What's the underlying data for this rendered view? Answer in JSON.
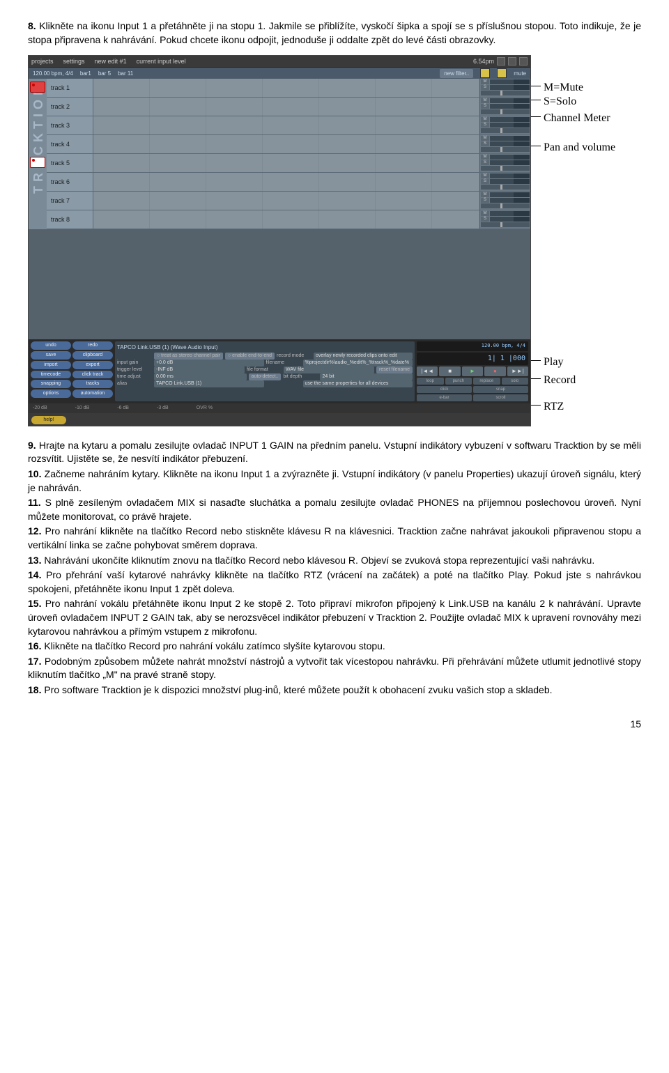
{
  "intro": {
    "n": "8.",
    "text": "Klikněte na ikonu Input 1 a přetáhněte ji na stopu 1. Jakmile se přiblížíte, vyskočí šipka a spojí se s příslušnou stopou. Toto indikuje, že je stopa připravena k nahrávání. Pokud chcete ikonu odpojit, jednoduše ji oddalte zpět do levé části obrazovky."
  },
  "screenshot": {
    "menubar": {
      "projects": "projects",
      "settings": "settings",
      "edit": "new edit #1",
      "level": "current input level",
      "time": "6.54pm"
    },
    "toolbar2": {
      "tempo": "120.00 bpm, 4/4",
      "bar1": "bar1",
      "bar5": "bar 5",
      "bar11": "bar 11",
      "newfilter": "new filter..",
      "mute": "mute"
    },
    "tracks": [
      {
        "label": "track 1",
        "chip": "red"
      },
      {
        "label": "track 2"
      },
      {
        "label": "track 3"
      },
      {
        "label": "track 4"
      },
      {
        "label": "track 5",
        "chip": "white"
      },
      {
        "label": "track 6"
      },
      {
        "label": "track 7"
      },
      {
        "label": "track 8"
      }
    ],
    "sidebtns": [
      [
        "undo",
        "redo"
      ],
      [
        "save",
        "clipboard"
      ],
      [
        "import",
        "export"
      ],
      [
        "timecode",
        "click track"
      ],
      [
        "snapping",
        "tracks"
      ],
      [
        "options",
        "automation"
      ]
    ],
    "help": "help!",
    "props": {
      "title": "TAPCO Link.USB (1) (Wave Audio Input)",
      "rows": [
        {
          "l": "",
          "f1": "treat as stereo channel pair",
          "f2": "enable end-to-end",
          "l2": "record mode",
          "v2": "overlay newly recorded clips onto edit"
        },
        {
          "l": "input gain",
          "v": "+0.0 dB",
          "l2": "filename",
          "v2": "%projectdir%\\audio_%edit%_%track%_%date%"
        },
        {
          "l": "trigger level",
          "v": "-INF dB",
          "l2": "file format",
          "v2": "WAV file",
          "extra": "reset filename"
        },
        {
          "l": "time adjust",
          "v": "0.00 ms",
          "mid": "auto-detect..",
          "l2": "bit depth",
          "v2": "24 bit"
        },
        {
          "l": "alias",
          "v": "TAPCO Link.USB (1)",
          "l2": "",
          "v2": "use the same properties for all devices"
        }
      ]
    },
    "transport": {
      "lcd_top": "120.00 bpm, 4/4",
      "lcd": "1| 1 |000",
      "marks": [
        "|◄◄",
        "■",
        "►",
        "●",
        "►►|"
      ],
      "row1": [
        "loop",
        "punch",
        "replace",
        "solo"
      ],
      "row2": [
        "click",
        "snap"
      ],
      "row3": [
        "e-bar",
        "scroll"
      ]
    },
    "ruler": [
      "-20 dB",
      "-10 dB",
      "-6 dB",
      "-3 dB",
      "OVR %"
    ]
  },
  "annotations": {
    "mute": "M=Mute",
    "solo": "S=Solo",
    "meter": "Channel Meter",
    "pan": "Pan and volume",
    "play": "Play",
    "record": "Record",
    "rtz": "RTZ"
  },
  "steps": [
    {
      "n": "9.",
      "text": "Hrajte na kytaru a pomalu zesilujte ovladač INPUT 1 GAIN na předním panelu. Vstupní indikátory vybuzení v softwaru Tracktion by se měli rozsvítit. Ujistěte se, že nesvítí indikátor přebuzení."
    },
    {
      "n": "10.",
      "text": "Začneme nahráním kytary. Klikněte na ikonu Input 1 a zvýrazněte ji. Vstupní indikátory (v panelu Properties) ukazují úroveň signálu, který je nahráván."
    },
    {
      "n": "11.",
      "text": "S plně zesíleným ovladačem MIX si nasaďte sluchátka a pomalu zesilujte ovladač PHONES na příjemnou poslechovou úroveň. Nyní můžete monitorovat, co právě hrajete."
    },
    {
      "n": "12.",
      "text": "Pro nahrání klikněte na tlačítko Record nebo stiskněte klávesu R na klávesnici. Tracktion začne nahrávat jakoukoli připravenou stopu a vertikální linka se začne pohybovat směrem doprava."
    },
    {
      "n": "13.",
      "text": "Nahrávání ukončíte kliknutím znovu na tlačítko Record nebo klávesou R. Objeví se zvuková stopa reprezentující vaši nahrávku."
    },
    {
      "n": "14.",
      "text": "Pro přehrání vaší kytarové nahrávky klikněte na tlačítko RTZ (vrácení na začátek) a poté na tlačítko Play. Pokud jste s nahrávkou spokojeni, přetáhněte ikonu Input 1 zpět doleva."
    },
    {
      "n": "15.",
      "text": "Pro nahrání vokálu přetáhněte ikonu Input 2 ke stopě 2. Toto připraví mikrofon připojený k Link.USB na kanálu 2 k nahrávání. Upravte úroveň ovladačem INPUT 2 GAIN tak, aby se nerozsvěcel indikátor přebuzení v Tracktion 2. Použijte ovladač MIX k upravení rovnováhy mezi kytarovou nahrávkou a přímým vstupem z mikrofonu."
    },
    {
      "n": "16.",
      "text": "Klikněte na tlačítko Record pro nahrání vokálu zatímco slyšíte kytarovou stopu."
    },
    {
      "n": "17.",
      "text": "Podobným způsobem můžete nahrát množství nástrojů a vytvořit tak vícestopou nahrávku. Při přehrávání můžete utlumit jednotlivé stopy kliknutím tlačítko „M\" na pravé straně stopy."
    },
    {
      "n": "18.",
      "text": "Pro software Tracktion je k dispozici množství plug-inů, které můžete použít k obohacení zvuku vašich stop a skladeb."
    }
  ],
  "pagenum": "15"
}
